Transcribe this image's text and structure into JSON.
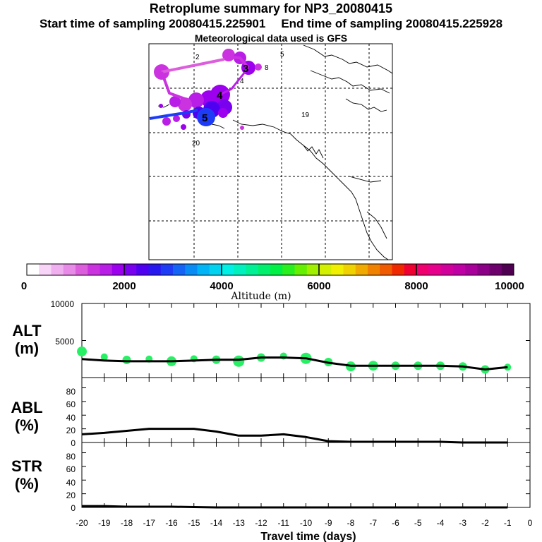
{
  "header": {
    "title": "Retroplume summary for NP3_20080415",
    "start_label": "Start time of sampling 20080415.225901",
    "end_label": "End time of sampling 20080415.225928",
    "met_label": "Meteorological data used is GFS"
  },
  "map": {
    "trajectory_labels": [
      {
        "n": "2",
        "mark": "minor"
      },
      {
        "n": "5",
        "mark": "minor"
      },
      {
        "n": "8",
        "mark": "minor"
      },
      {
        "n": "4",
        "mark": "minor"
      },
      {
        "n": "19",
        "mark": "minor"
      },
      {
        "n": "20",
        "mark": "minor"
      },
      {
        "n": "3",
        "mark": "major"
      },
      {
        "n": "4",
        "mark": "major"
      },
      {
        "n": "5",
        "mark": "major"
      }
    ]
  },
  "colorbar": {
    "title": "Altitude (m)",
    "tick_labels": [
      "0",
      "2000",
      "4000",
      "6000",
      "8000",
      "10000"
    ],
    "colors": [
      "#ffffff",
      "#f8d4f8",
      "#f0b0f0",
      "#e88ae8",
      "#dc5edc",
      "#cc33e0",
      "#b81ee6",
      "#9c00ee",
      "#7a00f0",
      "#5000f0",
      "#2818f0",
      "#1e3cf5",
      "#1464f5",
      "#0a8cf5",
      "#00b4f5",
      "#00d2f0",
      "#00f0e6",
      "#00f0be",
      "#00f096",
      "#00f06e",
      "#00f046",
      "#28f01e",
      "#64f000",
      "#a0f000",
      "#d2f000",
      "#f0f000",
      "#f0d200",
      "#f0aa00",
      "#f08200",
      "#f05a00",
      "#f02800",
      "#f00032",
      "#f0006e",
      "#e6008c",
      "#d2009b",
      "#be00a5",
      "#aa009b",
      "#8c0087",
      "#6e006e",
      "#500050"
    ]
  },
  "panels": {
    "alt": {
      "label": "ALT",
      "unit": "(m)",
      "y_ticks": [
        "10000",
        "5000"
      ]
    },
    "abl": {
      "label": "ABL",
      "unit": "(%)",
      "y_ticks": [
        "80",
        "60",
        "40",
        "20",
        "0"
      ]
    },
    "str": {
      "label": "STR",
      "unit": "(%)",
      "y_ticks": [
        "80",
        "60",
        "40",
        "20",
        "0"
      ]
    }
  },
  "xaxis": {
    "title": "Travel time (days)",
    "tick_labels": [
      "-20",
      "-19",
      "-18",
      "-17",
      "-16",
      "-15",
      "-14",
      "-13",
      "-12",
      "-11",
      "-10",
      "-9",
      "-8",
      "-7",
      "-6",
      "-5",
      "-4",
      "-3",
      "-2",
      "-1",
      "0"
    ]
  },
  "chart_data": {
    "type": "line",
    "x_label": "Travel time (days)",
    "x_range": [
      -20,
      0
    ],
    "series": [
      {
        "name": "ALT (m)",
        "y_range": [
          0,
          10000
        ],
        "x": [
          -20,
          -19,
          -18,
          -17,
          -16,
          -15,
          -14,
          -13,
          -12,
          -11,
          -10,
          -9,
          -8,
          -7,
          -6,
          -5,
          -4,
          -3,
          -2,
          -1
        ],
        "values": [
          2500,
          2300,
          2200,
          2200,
          2200,
          2300,
          2400,
          2400,
          2700,
          2700,
          2600,
          2000,
          1600,
          1600,
          1600,
          1600,
          1600,
          1500,
          1100,
          1400
        ]
      },
      {
        "name": "ABL (%)",
        "y_range": [
          0,
          95
        ],
        "x": [
          -20,
          -19,
          -18,
          -17,
          -16,
          -15,
          -14,
          -13,
          -12,
          -11,
          -10,
          -9,
          -8,
          -7,
          -6,
          -5,
          -4,
          -3,
          -2,
          -1
        ],
        "values": [
          12,
          14,
          17,
          20,
          20,
          20,
          16,
          10,
          10,
          12,
          8,
          2,
          1,
          1,
          1,
          1,
          1,
          0,
          0,
          0
        ]
      },
      {
        "name": "STR (%)",
        "y_range": [
          0,
          95
        ],
        "x": [
          -20,
          -19,
          -18,
          -17,
          -16,
          -15,
          -14,
          -13,
          -12,
          -11,
          -10,
          -9,
          -8,
          -7,
          -6,
          -5,
          -4,
          -3,
          -2,
          -1
        ],
        "values": [
          2,
          2,
          1,
          1,
          1,
          0.5,
          0,
          0,
          0,
          0,
          0,
          0,
          0,
          0,
          0,
          0,
          0,
          0,
          0,
          0
        ]
      }
    ]
  }
}
